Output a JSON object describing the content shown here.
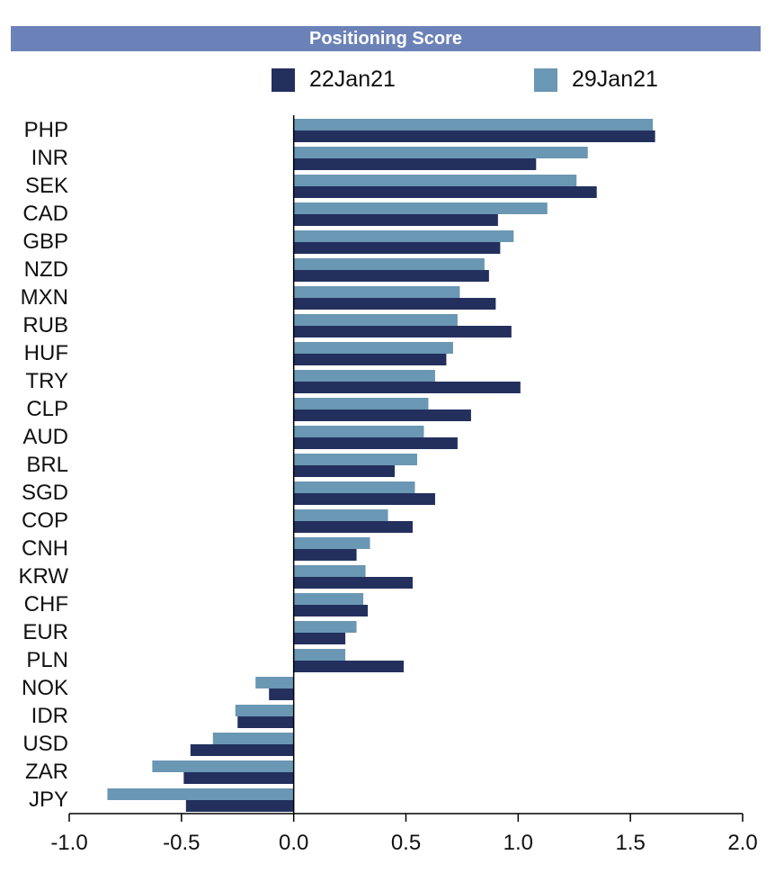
{
  "chart_data": {
    "type": "bar",
    "orientation": "horizontal",
    "title": "Positioning Score",
    "categories": [
      "PHP",
      "INR",
      "SEK",
      "CAD",
      "GBP",
      "NZD",
      "MXN",
      "RUB",
      "HUF",
      "TRY",
      "CLP",
      "AUD",
      "BRL",
      "SGD",
      "COP",
      "CNH",
      "KRW",
      "CHF",
      "EUR",
      "PLN",
      "NOK",
      "IDR",
      "USD",
      "ZAR",
      "JPY"
    ],
    "series": [
      {
        "name": "22Jan21",
        "color": "#23305e",
        "values": [
          1.61,
          1.08,
          1.35,
          0.91,
          0.92,
          0.87,
          0.9,
          0.97,
          0.68,
          1.01,
          0.79,
          0.73,
          0.45,
          0.63,
          0.53,
          0.28,
          0.53,
          0.33,
          0.23,
          0.49,
          -0.11,
          -0.25,
          -0.46,
          -0.49,
          -0.48
        ]
      },
      {
        "name": "29Jan21",
        "color": "#6a97b3",
        "values": [
          1.6,
          1.31,
          1.26,
          1.13,
          0.98,
          0.85,
          0.74,
          0.73,
          0.71,
          0.63,
          0.6,
          0.58,
          0.55,
          0.54,
          0.42,
          0.34,
          0.32,
          0.31,
          0.28,
          0.23,
          -0.17,
          -0.26,
          -0.36,
          -0.63,
          -0.83
        ]
      }
    ],
    "xlim": [
      -1.0,
      2.0
    ],
    "xticks": [
      "-1.0",
      "-0.5",
      "0.0",
      "0.5",
      "1.0",
      "1.5",
      "2.0"
    ],
    "legend_position": "top",
    "grid": false
  }
}
